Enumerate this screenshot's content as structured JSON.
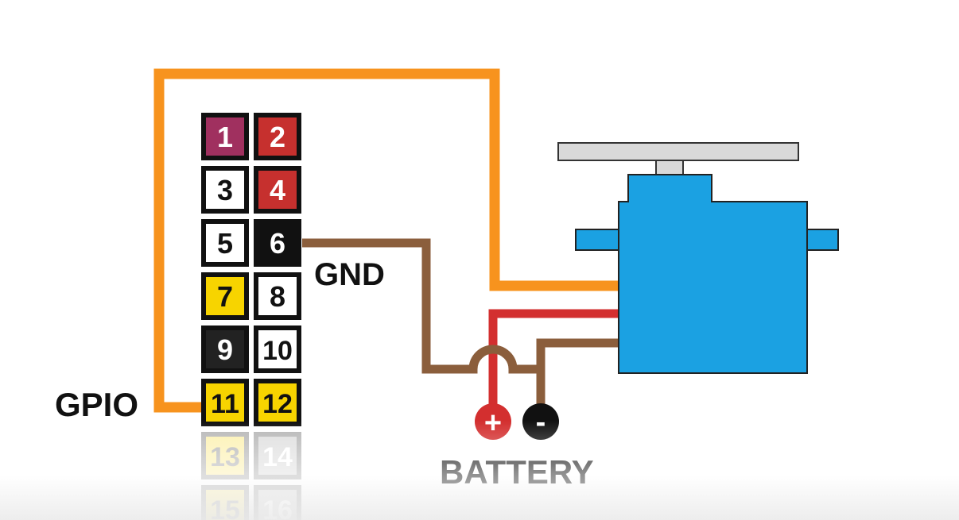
{
  "labels": {
    "gpio": "GPIO",
    "gnd": "GND",
    "battery": "BATTERY",
    "plus": "+",
    "minus": "-"
  },
  "pins": [
    {
      "num": "1",
      "color": "#a0305f",
      "text": "#ffffff"
    },
    {
      "num": "2",
      "color": "#c6302e",
      "text": "#ffffff"
    },
    {
      "num": "3",
      "color": "#ffffff",
      "text": "#111111"
    },
    {
      "num": "4",
      "color": "#c6302e",
      "text": "#ffffff"
    },
    {
      "num": "5",
      "color": "#ffffff",
      "text": "#111111"
    },
    {
      "num": "6",
      "color": "#111111",
      "text": "#ffffff"
    },
    {
      "num": "7",
      "color": "#f7d400",
      "text": "#111111"
    },
    {
      "num": "8",
      "color": "#ffffff",
      "text": "#111111"
    },
    {
      "num": "9",
      "color": "#222222",
      "text": "#ffffff"
    },
    {
      "num": "10",
      "color": "#ffffff",
      "text": "#111111"
    },
    {
      "num": "11",
      "color": "#f7d400",
      "text": "#111111"
    },
    {
      "num": "12",
      "color": "#f7d400",
      "text": "#111111"
    },
    {
      "num": "13",
      "color": "#f7d400",
      "text": "#111111",
      "faded": true
    },
    {
      "num": "14",
      "color": "#999999",
      "text": "#ffffff",
      "faded": true
    },
    {
      "num": "15",
      "color": "#f7d400",
      "text": "#111111",
      "faded": true
    },
    {
      "num": "16",
      "color": "#999999",
      "text": "#ffffff",
      "faded": true
    }
  ],
  "colors": {
    "signal_wire": "#f7931e",
    "power_wire": "#d32f2f",
    "ground_wire": "#8b5e3c",
    "servo_body": "#1ba1e2",
    "servo_horn": "#d9d9d9",
    "terminal_plus": "#d32f2f",
    "terminal_minus": "#111111"
  }
}
